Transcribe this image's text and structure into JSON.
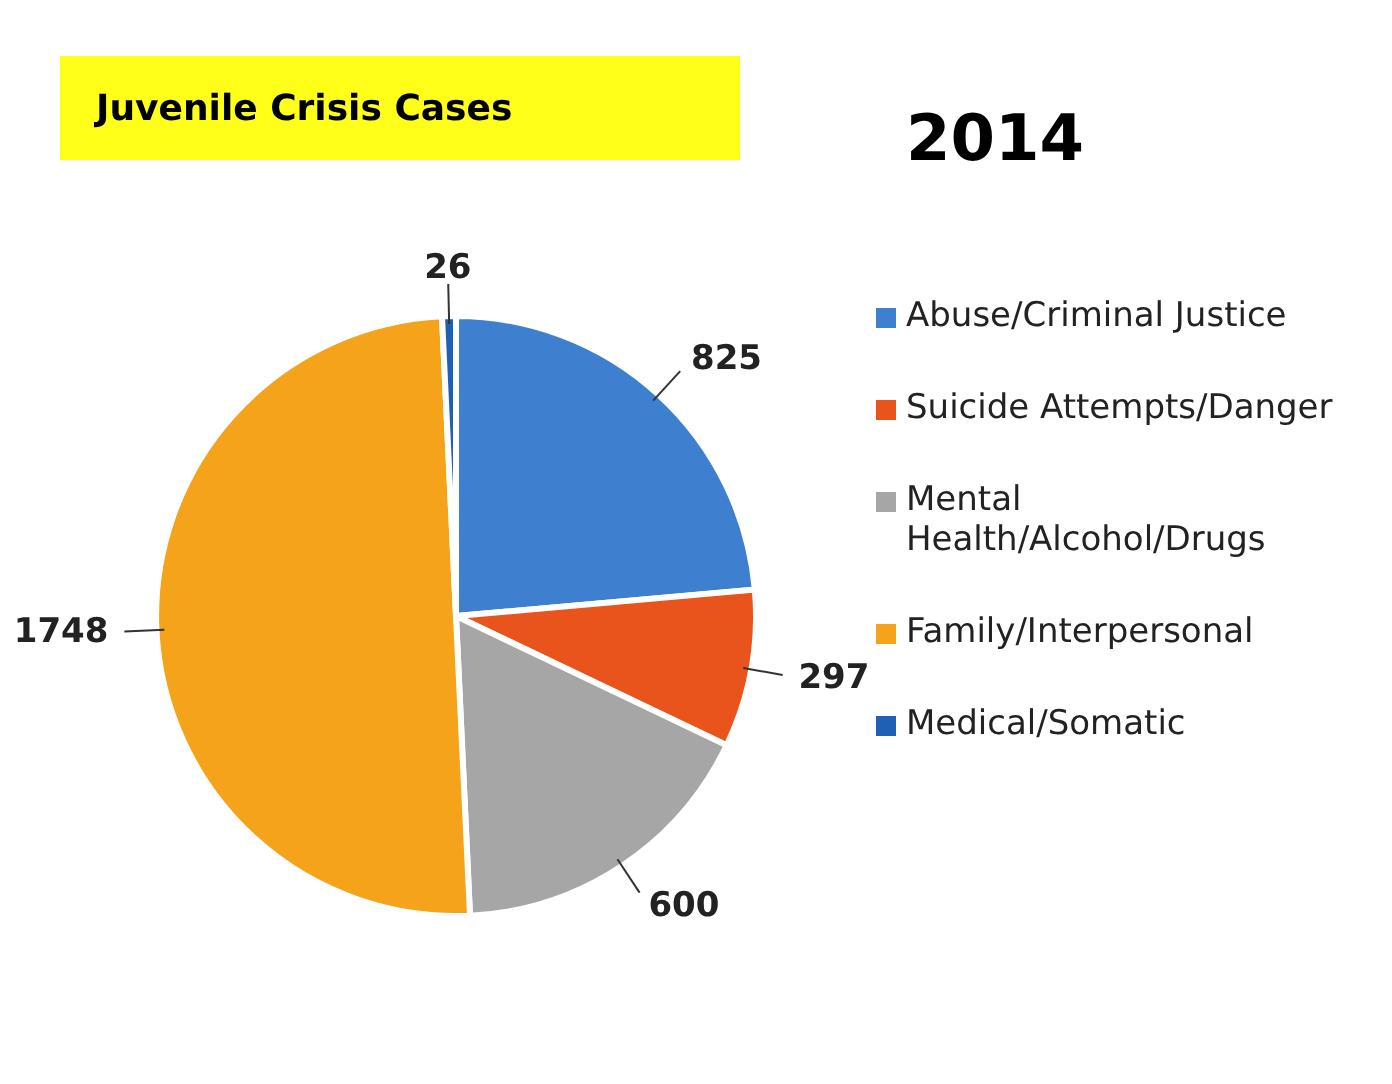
{
  "chart_data": {
    "type": "pie",
    "title": "Juvenile Crisis Cases",
    "subtitle": "2014",
    "categories": [
      "Abuse/Criminal Justice",
      "Suicide Attempts/Danger",
      "Mental Health/Alcohol/Drugs",
      "Family/Interpersonal",
      "Medical/Somatic"
    ],
    "values": [
      825,
      297,
      600,
      1748,
      26
    ],
    "colors": [
      "#3f7fcf",
      "#e8541c",
      "#a6a6a6",
      "#f5a31a",
      "#1f5fb4"
    ],
    "data_labels": true,
    "legend": "right"
  }
}
